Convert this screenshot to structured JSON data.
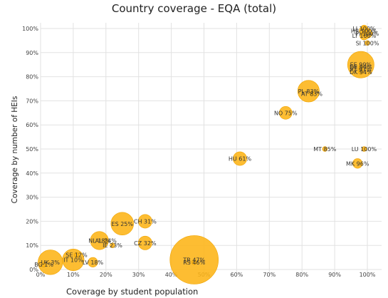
{
  "chart_data": {
    "type": "scatter",
    "title": "Country coverage - EQA (total)",
    "xlabel": "Coverage by student population",
    "ylabel": "Coverage by number of HEIs",
    "xlim": [
      0,
      100
    ],
    "ylim": [
      0,
      100
    ],
    "x_ticks": [
      "0%",
      "10%",
      "20%",
      "30%",
      "40%",
      "50%",
      "60%",
      "70%",
      "80%",
      "90%",
      "100%"
    ],
    "y_ticks": [
      "0%",
      "10%",
      "20%",
      "30%",
      "40%",
      "50%",
      "60%",
      "70%",
      "80%",
      "90%",
      "100%"
    ],
    "grid": true,
    "bubble_color": "#FDB416",
    "bubble_edge_color": "#F0A400",
    "points": [
      {
        "label": "TR 47%",
        "x": 47,
        "y": 4,
        "size": 100
      },
      {
        "label": "RS 46%",
        "x": 47,
        "y": 3,
        "size": 1
      },
      {
        "label": "EE 99%",
        "x": 98,
        "y": 85,
        "size": 30
      },
      {
        "label": "DE 99%",
        "x": 98,
        "y": 84,
        "size": 1
      },
      {
        "label": "PT 97%",
        "x": 98,
        "y": 83,
        "size": 1
      },
      {
        "label": "DK 94%",
        "x": 98,
        "y": 82,
        "size": 1
      },
      {
        "label": "PL 83%",
        "x": 82,
        "y": 74,
        "size": 20
      },
      {
        "label": "AT 83%",
        "x": 83,
        "y": 73,
        "size": 1
      },
      {
        "label": "ES 25%",
        "x": 25,
        "y": 19,
        "size": 22
      },
      {
        "label": "UK 3%",
        "x": 3,
        "y": 3,
        "size": 26
      },
      {
        "label": "BG 1%",
        "x": 1,
        "y": 2,
        "size": 1
      },
      {
        "label": "IT 10%",
        "x": 10,
        "y": 4,
        "size": 20
      },
      {
        "label": "SE 12%",
        "x": 11,
        "y": 6,
        "size": 1
      },
      {
        "label": "NL 18%",
        "x": 18,
        "y": 12,
        "size": 14
      },
      {
        "label": "AL 24%",
        "x": 20,
        "y": 12,
        "size": 1
      },
      {
        "label": "IE 23%",
        "x": 22,
        "y": 10,
        "size": 1
      },
      {
        "label": "LV 18%",
        "x": 16,
        "y": 3,
        "size": 4
      },
      {
        "label": "CH 31%",
        "x": 32,
        "y": 20,
        "size": 8
      },
      {
        "label": "CZ 32%",
        "x": 32,
        "y": 11,
        "size": 8
      },
      {
        "label": "HU 61%",
        "x": 61,
        "y": 46,
        "size": 8
      },
      {
        "label": "NO 75%",
        "x": 75,
        "y": 65,
        "size": 7
      },
      {
        "label": "MT 85%",
        "x": 87,
        "y": 50,
        "size": 1
      },
      {
        "label": "LU 100%",
        "x": 99,
        "y": 50,
        "size": 1
      },
      {
        "label": "MK 96%",
        "x": 97,
        "y": 44,
        "size": 4
      },
      {
        "label": "LI 100%",
        "x": 99,
        "y": 100,
        "size": 2
      },
      {
        "label": "HR 100%",
        "x": 99,
        "y": 99,
        "size": 4
      },
      {
        "label": "LT 100%",
        "x": 99,
        "y": 97,
        "size": 3
      },
      {
        "label": "FI 100%",
        "x": 100,
        "y": 98,
        "size": 4
      },
      {
        "label": "SI 100%",
        "x": 100,
        "y": 94,
        "size": 1
      }
    ]
  }
}
